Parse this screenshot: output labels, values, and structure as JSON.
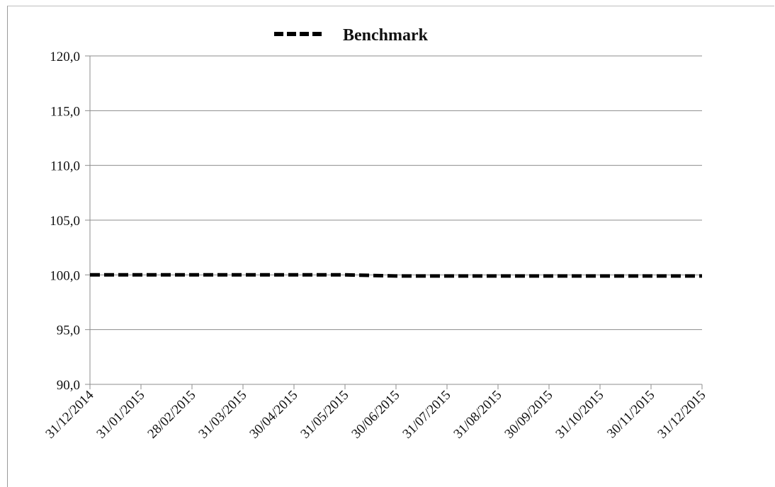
{
  "chart_data": {
    "type": "line",
    "title": "",
    "xlabel": "",
    "ylabel": "",
    "categories": [
      "31/12/2014",
      "31/01/2015",
      "28/02/2015",
      "31/03/2015",
      "30/04/2015",
      "31/05/2015",
      "30/06/2015",
      "31/07/2015",
      "31/08/2015",
      "30/09/2015",
      "31/10/2015",
      "30/11/2015",
      "31/12/2015"
    ],
    "series": [
      {
        "name": "Benchmark",
        "values": [
          100.0,
          100.0,
          100.0,
          100.0,
          100.0,
          100.0,
          99.9,
          99.9,
          99.9,
          99.9,
          99.9,
          99.9,
          99.9
        ],
        "style": "dashed",
        "color": "#000000"
      }
    ],
    "ylim": [
      90,
      120
    ],
    "yticks": [
      "90,0",
      "95,0",
      "100,0",
      "105,0",
      "110,0",
      "115,0",
      "120,0"
    ],
    "grid": true,
    "legend_position": "top-center"
  }
}
